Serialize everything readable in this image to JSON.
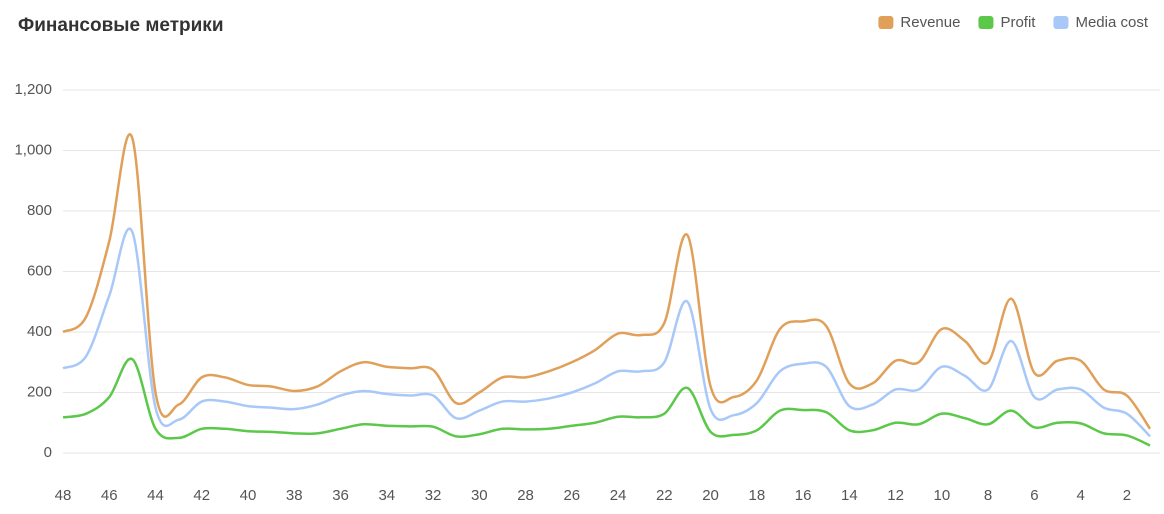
{
  "chart_data": {
    "type": "line",
    "title": "Финансовые метрики",
    "x": [
      48,
      47,
      46,
      45,
      44,
      43,
      42,
      41,
      40,
      39,
      38,
      37,
      36,
      35,
      34,
      33,
      32,
      31,
      30,
      29,
      28,
      27,
      26,
      25,
      24,
      23,
      22,
      21,
      20,
      19,
      18,
      17,
      16,
      15,
      14,
      13,
      12,
      11,
      10,
      9,
      8,
      7,
      6,
      5,
      4,
      3,
      2,
      1
    ],
    "xlim": [
      48,
      1
    ],
    "xticks": [
      48,
      46,
      44,
      42,
      40,
      38,
      36,
      34,
      32,
      30,
      28,
      26,
      24,
      22,
      20,
      18,
      16,
      14,
      12,
      10,
      8,
      6,
      4,
      2
    ],
    "ylim": [
      0,
      1200
    ],
    "yticks": [
      0,
      200,
      400,
      600,
      800,
      {
        "value": 1000,
        "label": "1,000"
      },
      {
        "value": 1200,
        "label": "1,200"
      }
    ],
    "grid": true,
    "legend": "top-right",
    "series": [
      {
        "name": "Revenue",
        "color": "#e0a05a",
        "values": [
          400,
          450,
          700,
          1040,
          200,
          160,
          250,
          250,
          225,
          220,
          205,
          220,
          270,
          300,
          285,
          280,
          275,
          165,
          200,
          250,
          250,
          270,
          300,
          340,
          395,
          390,
          430,
          720,
          220,
          185,
          240,
          410,
          435,
          420,
          230,
          230,
          305,
          300,
          410,
          370,
          300,
          510,
          265,
          305,
          305,
          210,
          190,
          80
        ]
      },
      {
        "name": "Profit",
        "color": "#5cc84a",
        "values": [
          118,
          130,
          185,
          310,
          80,
          50,
          80,
          80,
          72,
          70,
          65,
          65,
          80,
          95,
          90,
          88,
          87,
          55,
          62,
          80,
          78,
          80,
          90,
          100,
          120,
          118,
          130,
          215,
          70,
          60,
          75,
          140,
          142,
          135,
          75,
          75,
          100,
          95,
          130,
          115,
          95,
          140,
          85,
          100,
          98,
          65,
          58,
          25
        ]
      },
      {
        "name": "Media cost",
        "color": "#a8c8f8",
        "values": [
          280,
          320,
          520,
          730,
          150,
          110,
          170,
          170,
          155,
          150,
          145,
          160,
          190,
          205,
          195,
          190,
          190,
          115,
          140,
          170,
          170,
          180,
          200,
          230,
          270,
          270,
          300,
          500,
          145,
          125,
          165,
          270,
          295,
          285,
          155,
          160,
          210,
          210,
          285,
          255,
          210,
          370,
          185,
          210,
          210,
          150,
          130,
          55
        ]
      }
    ]
  }
}
